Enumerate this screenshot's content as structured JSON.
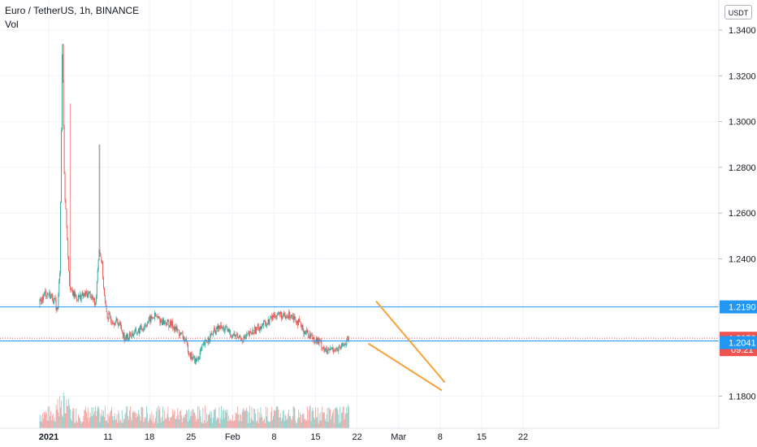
{
  "header": {
    "title": "Euro / TetherUS, 1h, BINANCE",
    "volume_label": "Vol",
    "currency_button": "USDT"
  },
  "chart_data": {
    "type": "candlestick",
    "title": "Euro / TetherUS, 1h, BINANCE",
    "ylim": [
      1.168,
      1.356
    ],
    "y_ticks": [
      1.34,
      1.32,
      1.3,
      1.28,
      1.26,
      1.24,
      1.22,
      1.18
    ],
    "y_tick_labels": [
      "1.3400",
      "1.3200",
      "1.3000",
      "1.2800",
      "1.2600",
      "1.2400",
      "1.2200",
      "1.1800"
    ],
    "x_range_days": [
      -1.5,
      50.7
    ],
    "x_ticks": [
      {
        "label": "2021",
        "day": 0
      },
      {
        "label": "11",
        "day": 10
      },
      {
        "label": "18",
        "day": 17
      },
      {
        "label": "25",
        "day": 24
      },
      {
        "label": "Feb",
        "day": 31
      },
      {
        "label": "8",
        "day": 38
      },
      {
        "label": "15",
        "day": 45
      },
      {
        "label": "22",
        "day": 52
      },
      {
        "label": "Mar",
        "day": 59
      },
      {
        "label": "8",
        "day": 66
      },
      {
        "label": "15",
        "day": 73
      },
      {
        "label": "22",
        "day": 80
      }
    ],
    "horizontal_lines": [
      {
        "value": 1.219,
        "label": "1.2190",
        "color": "#2196f3"
      },
      {
        "value": 1.2041,
        "label": "1.2041",
        "color": "#2196f3"
      }
    ],
    "last_price": {
      "value": 1.2053,
      "label": "1.2053",
      "countdown": "09:21",
      "color": "#ef5350"
    },
    "trendlines": [
      {
        "from": {
          "day": 55.2,
          "price": 1.2215
        },
        "to": {
          "day": 66.8,
          "price": 1.186
        },
        "color": "#f7a23b"
      },
      {
        "from": {
          "day": 53.9,
          "price": 1.203
        },
        "to": {
          "day": 66.3,
          "price": 1.1825
        },
        "color": "#f7a23b"
      }
    ],
    "price_path": [
      [
        -1.5,
        1.22
      ],
      [
        -0.5,
        1.225
      ],
      [
        0.5,
        1.224
      ],
      [
        1.2,
        1.221
      ],
      [
        1.6,
        1.217
      ],
      [
        2.0,
        1.235
      ],
      [
        2.4,
        1.334
      ],
      [
        2.8,
        1.27
      ],
      [
        3.2,
        1.252
      ],
      [
        3.6,
        1.23
      ],
      [
        4.0,
        1.225
      ],
      [
        5,
        1.223
      ],
      [
        6,
        1.224
      ],
      [
        7,
        1.225
      ],
      [
        8,
        1.22
      ],
      [
        8.6,
        1.245
      ],
      [
        9.1,
        1.238
      ],
      [
        9.6,
        1.22
      ],
      [
        10,
        1.215
      ],
      [
        11,
        1.213
      ],
      [
        12,
        1.212
      ],
      [
        13,
        1.205
      ],
      [
        14,
        1.207
      ],
      [
        15,
        1.208
      ],
      [
        16,
        1.21
      ],
      [
        17,
        1.213
      ],
      [
        18,
        1.215
      ],
      [
        19,
        1.213
      ],
      [
        20,
        1.212
      ],
      [
        21,
        1.211
      ],
      [
        22,
        1.208
      ],
      [
        23,
        1.205
      ],
      [
        24,
        1.198
      ],
      [
        25,
        1.195
      ],
      [
        26,
        1.201
      ],
      [
        27,
        1.205
      ],
      [
        28,
        1.208
      ],
      [
        29,
        1.21
      ],
      [
        30,
        1.209
      ],
      [
        31,
        1.207
      ],
      [
        32,
        1.206
      ],
      [
        33,
        1.205
      ],
      [
        34,
        1.207
      ],
      [
        35,
        1.209
      ],
      [
        36,
        1.211
      ],
      [
        37,
        1.212
      ],
      [
        38,
        1.215
      ],
      [
        39,
        1.216
      ],
      [
        40,
        1.214
      ],
      [
        41,
        1.216
      ],
      [
        42,
        1.213
      ],
      [
        43,
        1.209
      ],
      [
        44,
        1.207
      ],
      [
        45,
        1.205
      ],
      [
        46,
        1.203
      ],
      [
        47,
        1.199
      ],
      [
        48,
        1.201
      ],
      [
        49,
        1.2
      ],
      [
        50,
        1.203
      ],
      [
        50.7,
        1.205
      ]
    ]
  }
}
